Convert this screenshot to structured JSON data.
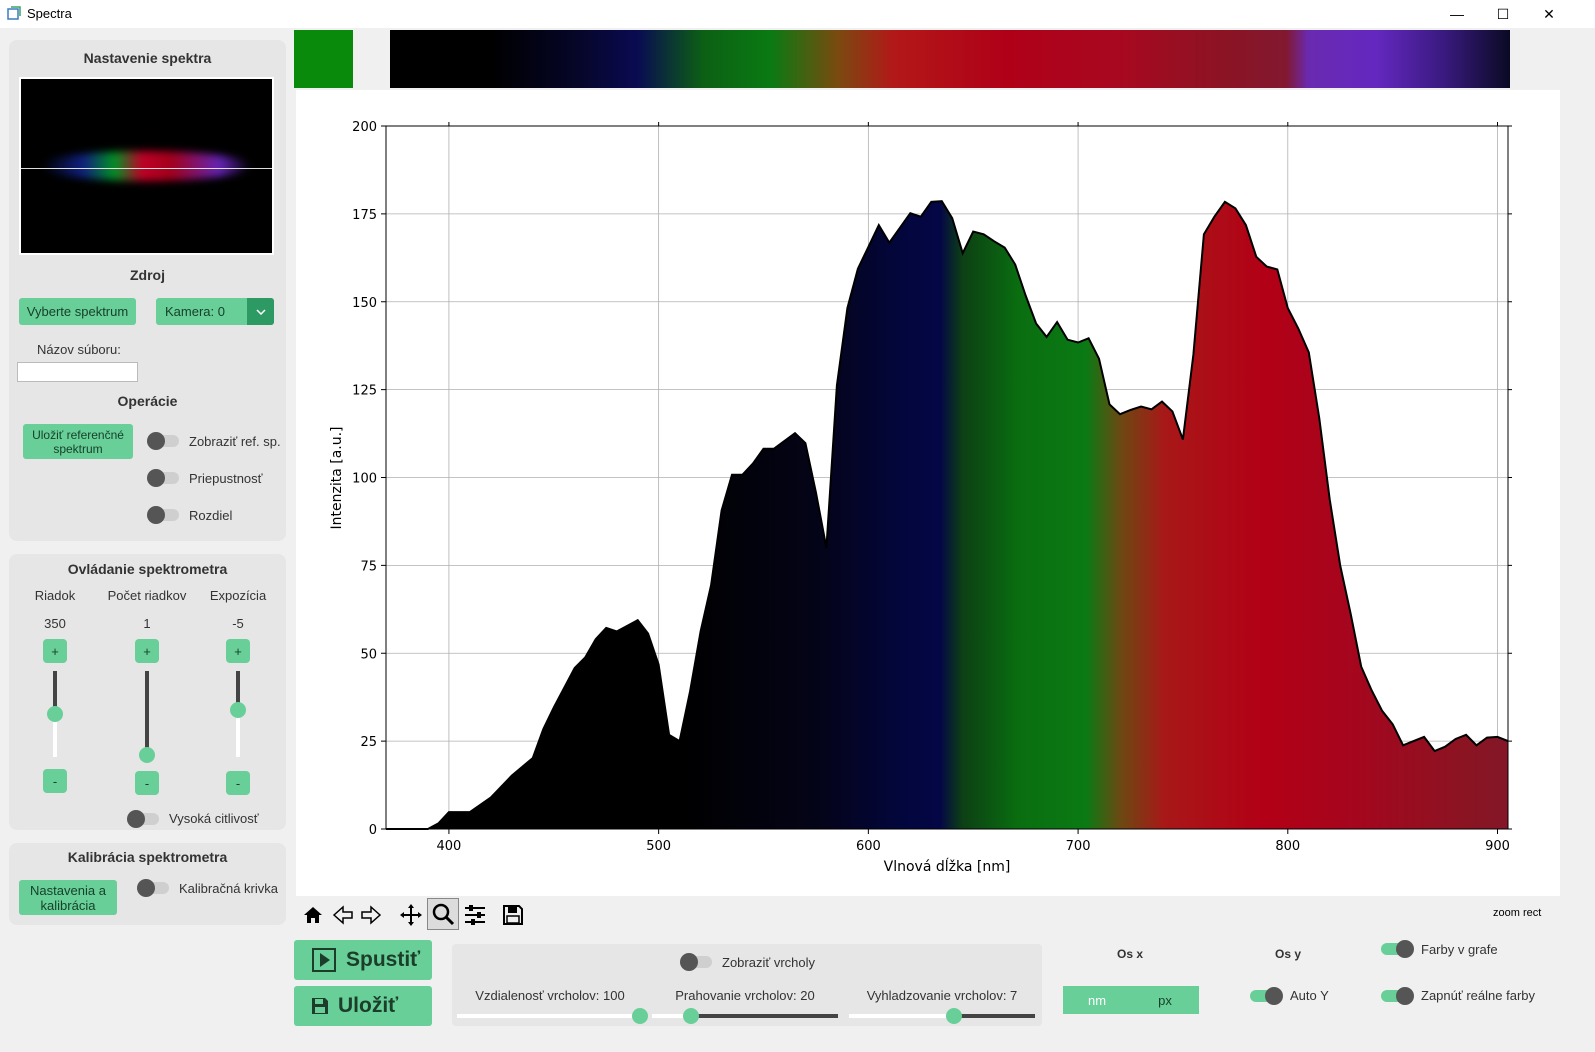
{
  "window": {
    "title": "Spectra",
    "minimize_glyph": "—",
    "maximize_glyph": "☐",
    "close_glyph": "✕"
  },
  "colors": {
    "accent": "#68cf98",
    "panel": "#e6e6e6",
    "knob": "#555555"
  },
  "spectrum_setup": {
    "title": "Nastavenie spektra",
    "source_label": "Zdroj",
    "select_spectrum_button": "Vyberte spektrum",
    "camera_select": "Kamera: 0",
    "filename_label": "Názov súboru:",
    "filename_value": "",
    "operations_title": "Operácie",
    "save_reference_button": "Uložiť referenčné spektrum",
    "toggles": [
      {
        "label": "Zobraziť ref. sp.",
        "on": false
      },
      {
        "label": "Priepustnosť",
        "on": false
      },
      {
        "label": "Rozdiel",
        "on": false
      }
    ]
  },
  "spectrometer_control": {
    "title": "Ovládanie spektrometra",
    "columns": [
      {
        "label": "Riadok",
        "value": "350",
        "plus": "+",
        "minus": "-",
        "level": 0.5
      },
      {
        "label": "Počet riadkov",
        "value": "1",
        "plus": "+",
        "minus": "-",
        "level": 0.0
      },
      {
        "label": "Expozícia",
        "value": "-5",
        "plus": "+",
        "minus": "-",
        "level": 0.55
      }
    ],
    "high_sensitivity": {
      "label": "Vysoká citlivosť",
      "on": false
    }
  },
  "calibration": {
    "title": "Kalibrácia spektrometra",
    "settings_button": "Nastavenia a kalibrácia",
    "curve_toggle": {
      "label": "Kalibračná krivka",
      "on": false
    }
  },
  "selected_color_swatch": "#0a8a0a",
  "chart_data": {
    "type": "area",
    "xlabel": "Vlnová dĺžka [nm]",
    "ylabel": "Intenzita [a.u.]",
    "xlim": [
      370,
      905
    ],
    "ylim": [
      0,
      200
    ],
    "xticks": [
      400,
      500,
      600,
      700,
      800,
      900
    ],
    "yticks": [
      0,
      25,
      50,
      75,
      100,
      125,
      150,
      175,
      200
    ],
    "grid": true,
    "fill": "real spectrum colors",
    "series": [
      {
        "x": [
          370,
          390,
          395,
          400,
          410,
          420,
          430,
          440,
          445,
          450,
          460,
          465,
          470,
          475,
          480,
          490,
          495,
          500,
          505,
          510,
          515,
          520,
          525,
          530,
          535,
          540,
          545,
          550,
          555,
          560,
          565,
          570,
          575,
          580,
          585,
          590,
          595,
          600,
          605,
          610,
          615,
          620,
          625,
          630,
          635,
          640,
          645,
          650,
          655,
          660,
          665,
          670,
          675,
          680,
          685,
          690,
          695,
          700,
          705,
          710,
          715,
          720,
          725,
          730,
          735,
          740,
          745,
          750,
          755,
          760,
          765,
          770,
          775,
          780,
          785,
          790,
          795,
          800,
          805,
          810,
          815,
          820,
          825,
          830,
          835,
          840,
          845,
          850,
          855,
          860,
          865,
          870,
          875,
          880,
          885,
          890,
          895,
          900,
          905
        ],
        "y": [
          0,
          0,
          1,
          3,
          6,
          9,
          14,
          22,
          29,
          34,
          44,
          50,
          54,
          56,
          58,
          60,
          55,
          45,
          28,
          25,
          38,
          58,
          70,
          90,
          99,
          102,
          104,
          107,
          110,
          111,
          112,
          108,
          97,
          80,
          125,
          150,
          160,
          165,
          170,
          168,
          171,
          174,
          176,
          179,
          178,
          172,
          165,
          170,
          168,
          169,
          166,
          160,
          150,
          145,
          140,
          143,
          141,
          139,
          139,
          132,
          122,
          118,
          118,
          122,
          120,
          121,
          117,
          112,
          135,
          168,
          176,
          179,
          176,
          170,
          164,
          160,
          158,
          150,
          143,
          135,
          115,
          95,
          75,
          60,
          48,
          40,
          33,
          28,
          25,
          25,
          25,
          24,
          24,
          25,
          25,
          25,
          26,
          25,
          25
        ],
        "note_unused": ""
      }
    ]
  },
  "toolbar": {
    "mode_text": "zoom rect"
  },
  "bottom": {
    "start_button": "Spustiť",
    "save_button": "Uložiť",
    "show_peaks": {
      "label": "Zobraziť vrcholy",
      "on": false
    },
    "peak_distance": {
      "label": "Vzdialenosť vrcholov: 100",
      "level": 0.97
    },
    "peak_threshold": {
      "label": "Prahovanie vrcholov: 20",
      "level": 0.2
    },
    "peak_smoothing": {
      "label": "Vyhladzovanie vrcholov: 7",
      "level": 0.55
    },
    "axis_x": {
      "label": "Os x",
      "options": [
        "nm",
        "px"
      ],
      "selected": "px"
    },
    "axis_y": {
      "label": "Os y",
      "auto_label": "Auto Y",
      "on": true
    },
    "colors_in_chart": {
      "label": "Farby v grafe",
      "on": true
    },
    "real_colors": {
      "label": "Zapnúť reálne farby",
      "on": true
    }
  }
}
